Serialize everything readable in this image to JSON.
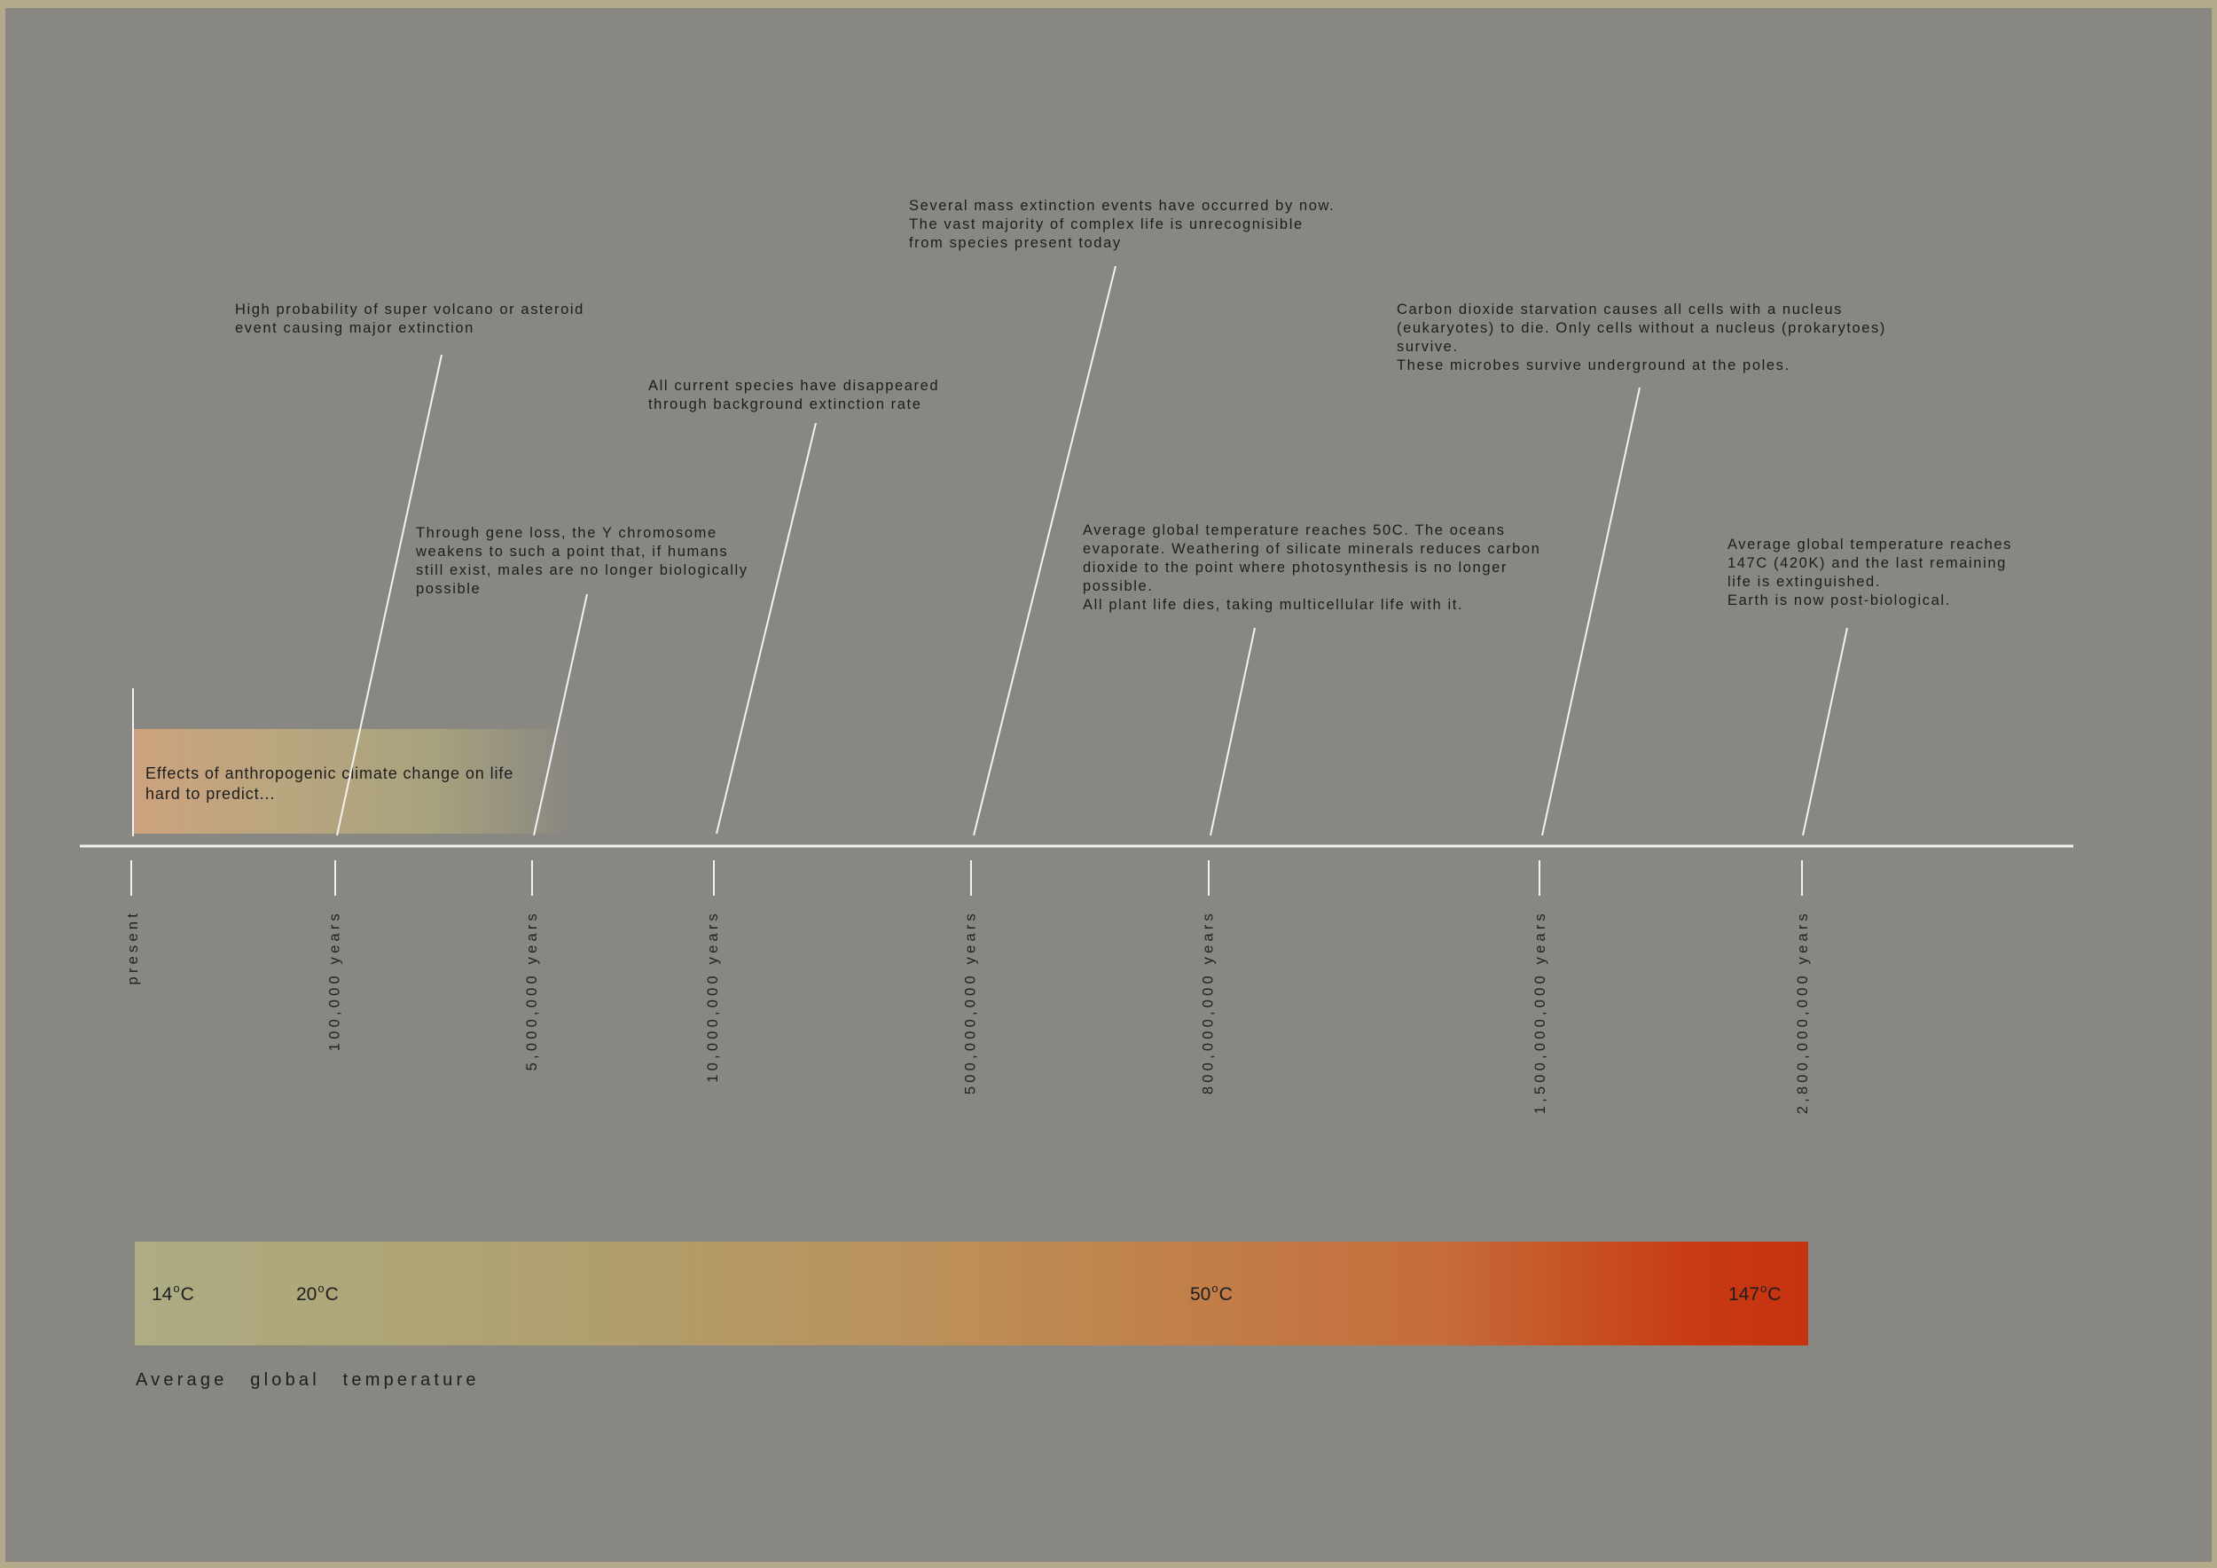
{
  "timeline": {
    "ticks": [
      "present",
      "100,000 years",
      "5,000,000 years",
      "10,000,000 years",
      "500,000,000 years",
      "800,000,000 years",
      "1,500,000,000 years",
      "2,800,000,000 years"
    ]
  },
  "climate_note": "Effects of anthropogenic climate change on life\nhard to predict...",
  "annotations": [
    "High probability of super volcano or asteroid\nevent causing major extinction",
    "Through gene loss, the Y chromosome\nweakens to such a point that, if humans\nstill exist, males are no longer biologically\npossible",
    "All current species have disappeared\nthrough background extinction rate",
    "Several mass extinction events have occurred by now.\nThe vast majority of complex life is unrecognisible\nfrom species present today",
    "Average global temperature reaches 50C. The oceans\nevaporate. Weathering of silicate minerals reduces carbon\ndioxide to the point where photosynthesis is no longer\npossible.\nAll plant life dies, taking multicellular life with it.",
    "Carbon dioxide starvation causes all cells with a nucleus\n(eukaryotes) to die. Only cells without a nucleus (prokarytoes)\nsurvive.\nThese microbes survive underground at the poles.",
    "Average global temperature reaches\n147C (420K) and the last remaining\nlife is extinguished.\nEarth is now post-biological."
  ],
  "temperature": {
    "caption": "Average global temperature",
    "unit_symbol": "o",
    "labels": [
      {
        "num": "14",
        "unit": "C"
      },
      {
        "num": "20",
        "unit": "C"
      },
      {
        "num": "50",
        "unit": "C"
      },
      {
        "num": "147",
        "unit": "C"
      }
    ]
  },
  "colors": {
    "background": "#898782",
    "line": "#f2f2f2",
    "temp_low": "#adac83",
    "temp_high": "#c53210",
    "climate_gradient_start": "#cda27e"
  }
}
